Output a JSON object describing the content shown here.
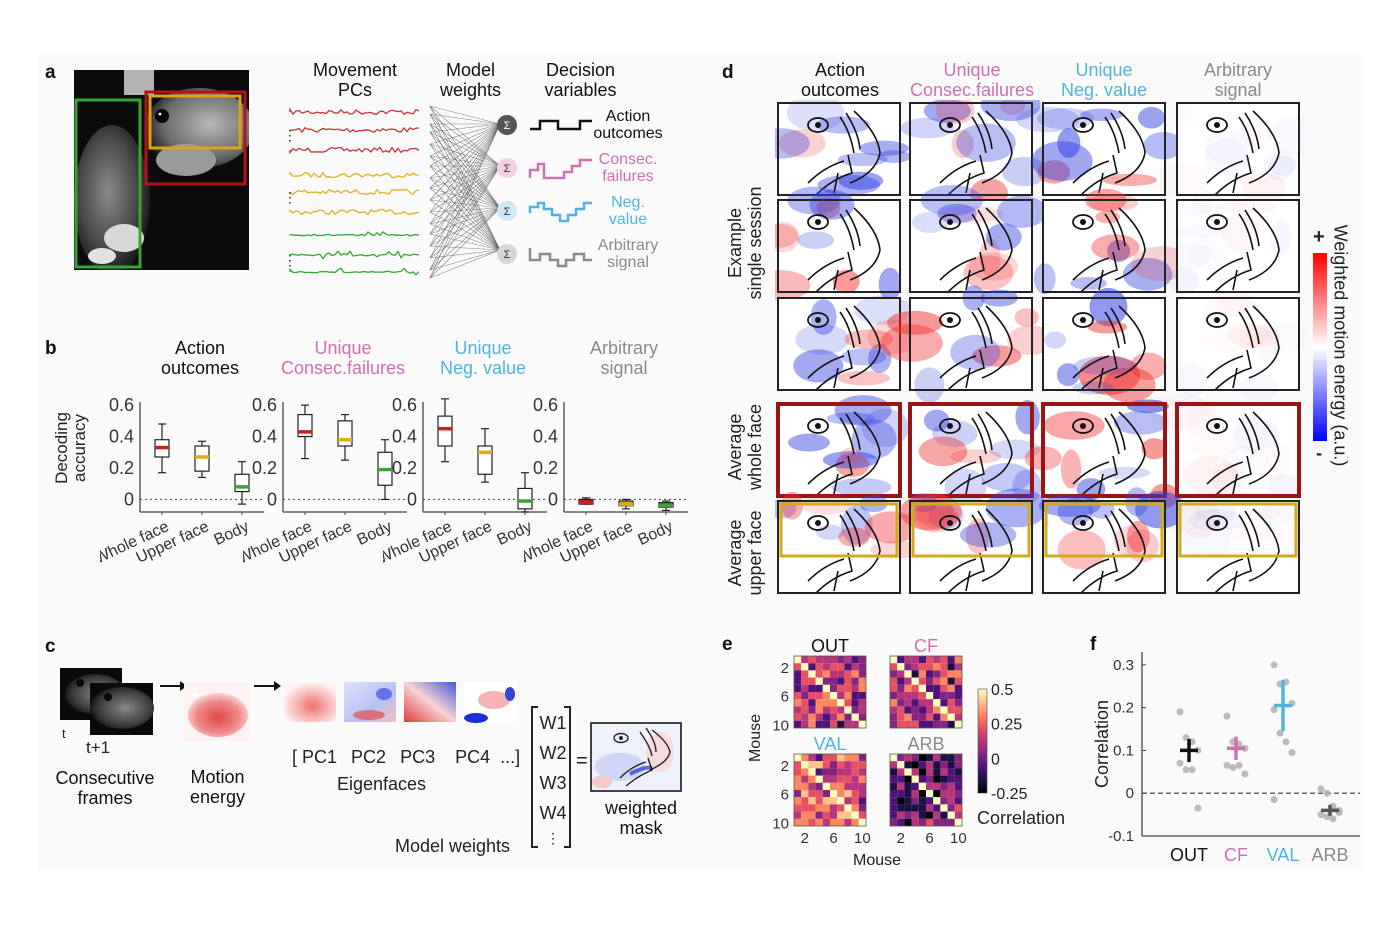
{
  "colors": {
    "red": "#cc1f1f",
    "orange": "#e0ac16",
    "green": "#3aa335",
    "pink": "#d16fb3",
    "blue": "#4fb4e0",
    "grey": "#8a8a8a",
    "black": "#111111",
    "darkred_frame": "#9a1414",
    "yellow_frame": "#d4aa1a"
  },
  "panel_a": {
    "label": "a",
    "col_headers": [
      "Movement\nPCs",
      "Model\nweights",
      "Decision\nvariables"
    ],
    "col_header_lines": [
      [
        "Movement",
        "PCs"
      ],
      [
        "Model",
        "weights"
      ],
      [
        "Decision",
        "variables"
      ]
    ],
    "roi_boxes": [
      "Body (green)",
      "Whole face (red)",
      "Upper face (yellow)"
    ],
    "sum_symbol": "Σ",
    "ellipsis": "⋮",
    "decision_variables": [
      {
        "line1": "Action",
        "line2": "outcomes",
        "color": "#111111"
      },
      {
        "line1": "Consec.",
        "line2": "failures",
        "color": "#d16fb3"
      },
      {
        "line1": "Neg.",
        "line2": "value",
        "color": "#4fb4e0"
      },
      {
        "line1": "Arbitrary",
        "line2": "signal",
        "color": "#8a8a8a"
      }
    ]
  },
  "panel_b": {
    "label": "b",
    "ylabel_line1": "Decoding",
    "ylabel_line2": "accuracy"
  },
  "panel_c": {
    "label": "c",
    "frame_t": "t",
    "frame_t1": "t+1",
    "consecutive_line1": "Consecutive",
    "consecutive_line2": "frames",
    "motion_line1": "Motion",
    "motion_line2": "energy",
    "pcs_text": "[ PC1   PC2   PC3   PC4  ...]",
    "pc_labels": [
      "[ PC1",
      "PC2",
      "PC3",
      "PC4",
      "...]"
    ],
    "eigenfaces": "Eigenfaces",
    "weights": [
      "W1",
      "W2",
      "W3",
      "W4",
      "⋮"
    ],
    "equals": "=",
    "model_weights": "Model weights",
    "weighted_line1": "weighted",
    "weighted_line2": "mask"
  },
  "panel_d": {
    "label": "d",
    "columns": [
      {
        "line1": "Action",
        "line2": "outcomes",
        "color": "#111111"
      },
      {
        "line1": "Unique",
        "line2": "Consec.failures",
        "color": "#d16fb3"
      },
      {
        "line1": "Unique",
        "line2": "Neg. value",
        "color": "#4fb4e0"
      },
      {
        "line1": "Arbitrary",
        "line2": "signal",
        "color": "#8a8a8a"
      }
    ],
    "rows": [
      {
        "line1": "Example",
        "line2": "single session"
      },
      {
        "line1": "Average",
        "line2": "whole face"
      },
      {
        "line1": "Average",
        "line2": "upper face"
      }
    ],
    "colorbar_label": "Weighted motion energy (a.u.)",
    "colorbar_plus": "+",
    "colorbar_minus": "-"
  },
  "panel_e": {
    "label": "e",
    "ylabel": "Mouse",
    "xlabel": "Mouse",
    "colorbar_label": "Correlation",
    "colorbar_ticks": [
      "0.5",
      "0.25",
      "0",
      "-0.25"
    ]
  },
  "panel_f": {
    "label": "f"
  },
  "chart_data": [
    {
      "type": "box",
      "panel": "b",
      "title": "Action outcomes",
      "title_lines": [
        "Action",
        "outcomes"
      ],
      "title_color": "#111111",
      "ylabel": "Decoding accuracy",
      "ylim": [
        -0.08,
        0.62
      ],
      "yticks": [
        0,
        0.2,
        0.4,
        0.6
      ],
      "ytick_labels": [
        "0",
        "0.2",
        "0.4",
        "0.6"
      ],
      "categories": [
        "Whole face",
        "Upper face",
        "Body"
      ],
      "boxes": [
        {
          "whisker_low": 0.17,
          "q1": 0.27,
          "median": 0.33,
          "q3": 0.38,
          "whisker_high": 0.48,
          "color": "#cc1f1f"
        },
        {
          "whisker_low": 0.14,
          "q1": 0.18,
          "median": 0.27,
          "q3": 0.34,
          "whisker_high": 0.37,
          "color": "#e0ac16"
        },
        {
          "whisker_low": -0.03,
          "q1": 0.05,
          "median": 0.08,
          "q3": 0.16,
          "whisker_high": 0.24,
          "color": "#3aa335"
        }
      ],
      "reference_line": 0
    },
    {
      "type": "box",
      "panel": "b",
      "title": "Unique Consec.failures",
      "title_lines": [
        "Unique",
        "Consec.failures"
      ],
      "title_color": "#d16fb3",
      "ylim": [
        -0.08,
        0.62
      ],
      "yticks": [
        0,
        0.2,
        0.4,
        0.6
      ],
      "ytick_labels": [
        "0",
        "0.2",
        "0.4",
        "0.6"
      ],
      "categories": [
        "Whole face",
        "Upper face",
        "Body"
      ],
      "boxes": [
        {
          "whisker_low": 0.26,
          "q1": 0.4,
          "median": 0.43,
          "q3": 0.54,
          "whisker_high": 0.6,
          "color": "#cc1f1f"
        },
        {
          "whisker_low": 0.25,
          "q1": 0.34,
          "median": 0.38,
          "q3": 0.5,
          "whisker_high": 0.54,
          "color": "#e0ac16"
        },
        {
          "whisker_low": 0.0,
          "q1": 0.09,
          "median": 0.19,
          "q3": 0.3,
          "whisker_high": 0.38,
          "color": "#3aa335"
        }
      ],
      "reference_line": 0
    },
    {
      "type": "box",
      "panel": "b",
      "title": "Unique Neg. value",
      "title_lines": [
        "Unique",
        "Neg. value"
      ],
      "title_color": "#4fb4e0",
      "ylim": [
        -0.08,
        0.62
      ],
      "yticks": [
        0,
        0.2,
        0.4,
        0.6
      ],
      "ytick_labels": [
        "0",
        "0.2",
        "0.4",
        "0.6"
      ],
      "categories": [
        "Whole face",
        "Upper face",
        "Body"
      ],
      "boxes": [
        {
          "whisker_low": 0.24,
          "q1": 0.34,
          "median": 0.45,
          "q3": 0.53,
          "whisker_high": 0.64,
          "color": "#cc1f1f"
        },
        {
          "whisker_low": 0.11,
          "q1": 0.16,
          "median": 0.3,
          "q3": 0.34,
          "whisker_high": 0.45,
          "color": "#e0ac16"
        },
        {
          "whisker_low": -0.08,
          "q1": -0.06,
          "median": -0.01,
          "q3": 0.07,
          "whisker_high": 0.17,
          "color": "#3aa335"
        }
      ],
      "reference_line": 0
    },
    {
      "type": "box",
      "panel": "b",
      "title": "Arbitrary signal",
      "title_lines": [
        "Arbitrary",
        "signal"
      ],
      "title_color": "#8a8a8a",
      "ylim": [
        -0.08,
        0.62
      ],
      "yticks": [
        0,
        0.2,
        0.4,
        0.6
      ],
      "ytick_labels": [
        "0",
        "0.2",
        "0.4",
        "0.6"
      ],
      "categories": [
        "Whole face",
        "Upper face",
        "Body"
      ],
      "boxes": [
        {
          "whisker_low": -0.03,
          "q1": -0.03,
          "median": -0.02,
          "q3": 0.0,
          "whisker_high": 0.01,
          "color": "#cc1f1f"
        },
        {
          "whisker_low": -0.06,
          "q1": -0.04,
          "median": -0.03,
          "q3": -0.01,
          "whisker_high": 0.0,
          "color": "#e0ac16"
        },
        {
          "whisker_low": -0.07,
          "q1": -0.05,
          "median": -0.04,
          "q3": -0.02,
          "whisker_high": -0.01,
          "color": "#3aa335"
        }
      ],
      "reference_line": 0
    },
    {
      "type": "heatmap",
      "panel": "e",
      "titles": [
        "OUT",
        "CF",
        "VAL",
        "ARB"
      ],
      "title_colors": [
        "#111111",
        "#d16fb3",
        "#4fb4e0",
        "#8a8a8a"
      ],
      "xlabel": "Mouse",
      "ylabel": "Mouse",
      "ticks": [
        2,
        6,
        10
      ],
      "n": 10,
      "colorscale": "magma",
      "zlim": [
        -0.25,
        0.5
      ],
      "colorbar_ticks": [
        0.5,
        0.25,
        0,
        -0.25
      ],
      "colorbar_label": "Correlation",
      "mean_offdiag": {
        "OUT": 0.1,
        "CF": 0.1,
        "VAL": 0.2,
        "ARB": -0.04
      }
    },
    {
      "type": "scatter",
      "panel": "f",
      "ylabel": "Correlation",
      "ylim": [
        -0.1,
        0.33
      ],
      "yticks": [
        -0.1,
        0,
        0.1,
        0.2,
        0.3
      ],
      "ytick_labels": [
        "-0.1",
        "0",
        "0.1",
        "0.2",
        "0.3"
      ],
      "categories": [
        "OUT",
        "CF",
        "VAL",
        "ARB"
      ],
      "category_colors": [
        "#111111",
        "#d16fb3",
        "#4fb4e0",
        "#555555"
      ],
      "reference_line": 0,
      "points": [
        [
          0.19,
          0.13,
          0.12,
          0.1,
          0.07,
          0.055,
          0.055,
          -0.035
        ],
        [
          0.18,
          0.12,
          0.115,
          0.105,
          0.065,
          0.06,
          0.065,
          0.045
        ],
        [
          0.3,
          0.255,
          0.26,
          0.21,
          0.195,
          0.14,
          0.12,
          0.095,
          -0.015
        ],
        [
          0.01,
          0.0,
          -0.03,
          -0.04,
          -0.05,
          -0.055,
          -0.06,
          -0.045
        ]
      ],
      "means": [
        0.1,
        0.105,
        0.205,
        -0.04
      ],
      "errors": [
        0.027,
        0.027,
        0.06,
        0.013
      ]
    }
  ]
}
